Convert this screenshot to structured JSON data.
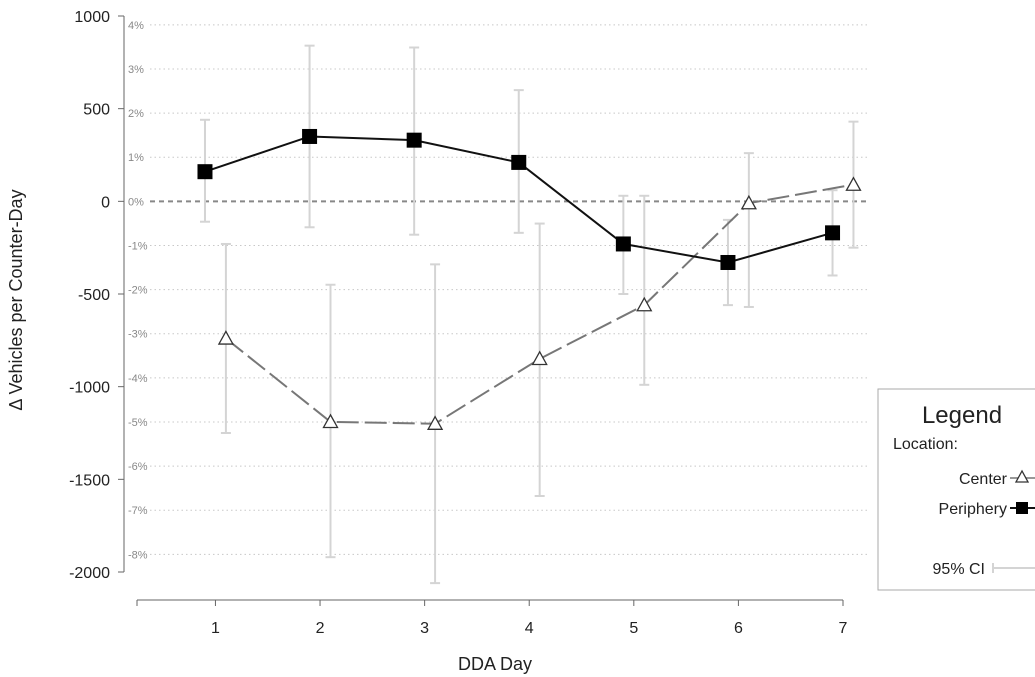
{
  "chart_data": {
    "type": "line",
    "xlabel": "DDA Day",
    "ylabel": "Δ Vehicles per Counter-Day",
    "x": [
      1,
      2,
      3,
      4,
      5,
      6,
      7
    ],
    "xlim": [
      0.25,
      7
    ],
    "ylim": [
      -2000,
      1000
    ],
    "yticks": [
      1000,
      500,
      0,
      -500,
      -1000,
      -1500,
      -2000
    ],
    "secondary_yticks": [
      "4%",
      "3%",
      "2%",
      "1%",
      "0%",
      "-1%",
      "-2%",
      "-3%",
      "-4%",
      "-5%",
      "-6%",
      "-7%",
      "-8%"
    ],
    "secondary_ylim": [
      4.2,
      -8.4
    ],
    "grid": true,
    "zero_line": "dashed",
    "legend": {
      "title": "Legend",
      "subtitle": "Location:",
      "placement": "right",
      "ci_label": "95% CI"
    },
    "series": [
      {
        "name": "Center",
        "marker": "open-triangle",
        "line_style": "long-dash",
        "color": "#777777",
        "x_offset": 0.1,
        "values": [
          -740,
          -1190,
          -1200,
          -850,
          -560,
          -10,
          90
        ],
        "ci_low": [
          -1250,
          -1920,
          -2060,
          -1590,
          -990,
          -570,
          -250
        ],
        "ci_high": [
          -230,
          -450,
          -340,
          -120,
          30,
          260,
          430
        ]
      },
      {
        "name": "Periphery",
        "marker": "filled-square",
        "line_style": "solid",
        "color": "#111111",
        "x_offset": -0.1,
        "values": [
          160,
          350,
          330,
          210,
          -230,
          -330,
          -170
        ],
        "ci_low": [
          -110,
          -140,
          -180,
          -170,
          -500,
          -560,
          -400
        ],
        "ci_high": [
          440,
          840,
          830,
          600,
          30,
          -100,
          60
        ]
      }
    ],
    "colors": {
      "ci": "#d4d4d4",
      "grid": "#c8c8c8",
      "zero": "#888888",
      "axis": "#666666"
    }
  }
}
